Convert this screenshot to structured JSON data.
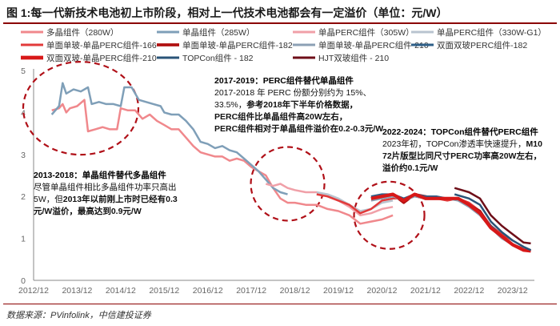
{
  "figure_title": "图 1:每一代新技术电池初上市阶段，相对上一代技术电池都会有一定溢价（单位：元/W）",
  "source": "数据来源：PVinfolink，中信建投证券",
  "chart_data": {
    "type": "line",
    "title": "",
    "xlabel": "",
    "ylabel": "",
    "x_ticks": [
      "2012/12",
      "2013/12",
      "2014/12",
      "2015/12",
      "2016/12",
      "2017/12",
      "2018/12",
      "2019/12",
      "2020/12",
      "2021/12",
      "2022/12",
      "2023/12"
    ],
    "y_ticks": [
      0,
      1,
      2,
      3,
      4,
      5
    ],
    "ylim": [
      0,
      5
    ],
    "xlim": [
      "2012/12",
      "2024/06"
    ],
    "grid": false,
    "legend_position": "top",
    "series": [
      {
        "name": "多晶组件（280W）",
        "color": "#f0888c",
        "width": 2.5,
        "points": [
          [
            "2013-05",
            4.05
          ],
          [
            "2013-07",
            4.1
          ],
          [
            "2013-08",
            4.2
          ],
          [
            "2013-09",
            4.0
          ],
          [
            "2013-10",
            4.1
          ],
          [
            "2013-12",
            4.15
          ],
          [
            "2014-02",
            4.3
          ],
          [
            "2014-03",
            3.55
          ],
          [
            "2014-05",
            3.6
          ],
          [
            "2014-07",
            3.65
          ],
          [
            "2014-09",
            3.6
          ],
          [
            "2014-11",
            3.6
          ],
          [
            "2014-12",
            4.1
          ],
          [
            "2015-02",
            4.05
          ],
          [
            "2015-04",
            4.05
          ],
          [
            "2015-06",
            3.85
          ],
          [
            "2015-08",
            3.95
          ],
          [
            "2015-10",
            3.8
          ],
          [
            "2015-12",
            3.7
          ],
          [
            "2016-02",
            3.6
          ],
          [
            "2016-04",
            3.6
          ],
          [
            "2016-06",
            3.4
          ],
          [
            "2016-08",
            3.2
          ],
          [
            "2016-10",
            3.05
          ],
          [
            "2016-12",
            3.0
          ],
          [
            "2017-02",
            2.95
          ],
          [
            "2017-04",
            2.95
          ],
          [
            "2017-06",
            2.85
          ],
          [
            "2017-08",
            2.9
          ],
          [
            "2017-10",
            2.85
          ],
          [
            "2017-12",
            2.7
          ],
          [
            "2018-02",
            2.6
          ],
          [
            "2018-04",
            2.5
          ],
          [
            "2018-06",
            2.2
          ],
          [
            "2018-08",
            1.95
          ],
          [
            "2018-10",
            1.85
          ],
          [
            "2018-12",
            1.85
          ],
          [
            "2019-03",
            1.8
          ],
          [
            "2019-06",
            1.8
          ],
          [
            "2019-09",
            1.7
          ],
          [
            "2019-12",
            1.65
          ],
          [
            "2020-03",
            1.55
          ],
          [
            "2020-06",
            1.35
          ],
          [
            "2020-09",
            1.4
          ],
          [
            "2020-12",
            1.45
          ],
          [
            "2021-03",
            1.55
          ]
        ]
      },
      {
        "name": "单晶组件（285W）",
        "color": "#7f9fb8",
        "width": 2.5,
        "points": [
          [
            "2013-05",
            3.95
          ],
          [
            "2013-07",
            4.15
          ],
          [
            "2013-08",
            4.7
          ],
          [
            "2013-09",
            4.45
          ],
          [
            "2013-11",
            4.55
          ],
          [
            "2014-01",
            4.5
          ],
          [
            "2014-03",
            4.6
          ],
          [
            "2014-04",
            4.2
          ],
          [
            "2014-06",
            4.25
          ],
          [
            "2014-08",
            4.2
          ],
          [
            "2014-10",
            4.2
          ],
          [
            "2014-12",
            4.15
          ],
          [
            "2015-01",
            4.6
          ],
          [
            "2015-03",
            4.6
          ],
          [
            "2015-05",
            4.3
          ],
          [
            "2015-07",
            4.25
          ],
          [
            "2015-09",
            4.2
          ],
          [
            "2015-11",
            4.15
          ],
          [
            "2015-12",
            4.0
          ],
          [
            "2016-02",
            3.95
          ],
          [
            "2016-04",
            3.95
          ],
          [
            "2016-06",
            3.8
          ],
          [
            "2016-08",
            3.6
          ],
          [
            "2016-10",
            3.3
          ],
          [
            "2016-12",
            3.25
          ],
          [
            "2017-02",
            3.15
          ],
          [
            "2017-04",
            3.2
          ],
          [
            "2017-06",
            3.1
          ],
          [
            "2017-08",
            3.05
          ],
          [
            "2017-10",
            2.9
          ],
          [
            "2017-12",
            2.75
          ],
          [
            "2018-02",
            2.6
          ],
          [
            "2018-04",
            2.4
          ],
          [
            "2018-06",
            2.2
          ],
          [
            "2018-08",
            2.1
          ],
          [
            "2018-10",
            2.05
          ]
        ]
      },
      {
        "name": "单晶PERC组件（305W）",
        "color": "#f0a0a8",
        "width": 2.5,
        "points": [
          [
            "2018-04",
            2.3
          ],
          [
            "2018-06",
            2.25
          ],
          [
            "2018-08",
            2.3
          ],
          [
            "2018-10",
            2.2
          ],
          [
            "2018-12",
            2.15
          ],
          [
            "2019-03",
            2.1
          ],
          [
            "2019-06",
            2.1
          ],
          [
            "2019-09",
            2.0
          ],
          [
            "2019-12",
            1.9
          ],
          [
            "2020-03",
            1.75
          ],
          [
            "2020-06",
            1.55
          ],
          [
            "2020-09",
            1.6
          ],
          [
            "2020-12",
            1.7
          ],
          [
            "2021-03",
            1.75
          ]
        ]
      },
      {
        "name": "单晶PERC组件（330W-G1）",
        "color": "#b9c4cf",
        "width": 2.5,
        "points": [
          [
            "2019-06",
            2.1
          ],
          [
            "2019-09",
            2.05
          ],
          [
            "2019-12",
            1.95
          ],
          [
            "2020-03",
            1.8
          ],
          [
            "2020-06",
            1.65
          ],
          [
            "2020-09",
            1.7
          ],
          [
            "2020-12",
            1.85
          ],
          [
            "2021-03",
            1.9
          ]
        ]
      },
      {
        "name": "单面单玻-单晶PERC组件-166",
        "color": "#e23a3a",
        "width": 2.5,
        "points": [
          [
            "2019-06",
            2.05
          ],
          [
            "2019-09",
            2.0
          ],
          [
            "2019-12",
            1.9
          ],
          [
            "2020-03",
            1.8
          ],
          [
            "2020-06",
            1.6
          ],
          [
            "2020-09",
            1.7
          ],
          [
            "2020-12",
            1.9
          ],
          [
            "2021-03",
            1.95
          ],
          [
            "2021-06",
            1.95
          ],
          [
            "2021-09",
            2.0
          ],
          [
            "2021-12",
            1.95
          ],
          [
            "2022-03",
            1.95
          ],
          [
            "2022-06",
            1.9
          ],
          [
            "2022-09",
            1.95
          ],
          [
            "2022-12",
            1.85
          ],
          [
            "2023-03",
            1.65
          ],
          [
            "2023-06",
            1.3
          ],
          [
            "2023-09",
            1.1
          ],
          [
            "2023-12",
            0.95
          ]
        ]
      },
      {
        "name": "单面单玻-单晶PERC组件-182",
        "color": "#b01010",
        "width": 3.2,
        "points": [
          [
            "2020-09",
            1.95
          ],
          [
            "2020-12",
            2.0
          ],
          [
            "2021-03",
            2.05
          ],
          [
            "2021-06",
            1.85
          ],
          [
            "2021-09",
            2.05
          ],
          [
            "2021-12",
            2.0
          ],
          [
            "2022-03",
            1.95
          ],
          [
            "2022-06",
            1.95
          ],
          [
            "2022-09",
            1.95
          ],
          [
            "2022-12",
            1.8
          ],
          [
            "2023-03",
            1.65
          ],
          [
            "2023-06",
            1.25
          ],
          [
            "2023-09",
            1.05
          ],
          [
            "2023-12",
            0.85
          ],
          [
            "2024-03",
            0.75
          ],
          [
            "2024-05",
            0.7
          ]
        ]
      },
      {
        "name": "单面单玻-单晶PERC组件-210",
        "color": "#8ca0b4",
        "width": 2.5,
        "points": [
          [
            "2020-09",
            1.9
          ],
          [
            "2020-12",
            1.95
          ],
          [
            "2021-03",
            2.0
          ],
          [
            "2021-06",
            1.9
          ],
          [
            "2021-09",
            2.0
          ],
          [
            "2021-12",
            1.95
          ],
          [
            "2022-03",
            1.95
          ],
          [
            "2022-06",
            1.95
          ],
          [
            "2022-09",
            1.9
          ],
          [
            "2022-12",
            1.75
          ],
          [
            "2023-03",
            1.55
          ],
          [
            "2023-06",
            1.25
          ],
          [
            "2023-09",
            1.0
          ],
          [
            "2023-12",
            0.85
          ],
          [
            "2024-03",
            0.75
          ],
          [
            "2024-05",
            0.7
          ]
        ]
      },
      {
        "name": "双面双玻PERC组件-182",
        "color": "#2e5f88",
        "width": 2.5,
        "points": [
          [
            "2020-09",
            2.0
          ],
          [
            "2020-12",
            2.05
          ],
          [
            "2021-03",
            2.05
          ],
          [
            "2021-06",
            1.95
          ],
          [
            "2021-09",
            2.05
          ],
          [
            "2021-12",
            2.0
          ],
          [
            "2022-03",
            2.0
          ],
          [
            "2022-06",
            1.95
          ],
          [
            "2022-09",
            1.95
          ],
          [
            "2022-12",
            1.8
          ],
          [
            "2023-03",
            1.6
          ],
          [
            "2023-06",
            1.3
          ],
          [
            "2023-09",
            1.05
          ],
          [
            "2023-12",
            0.85
          ],
          [
            "2024-03",
            0.72
          ],
          [
            "2024-05",
            0.7
          ]
        ]
      },
      {
        "name": "双面双玻-单晶PERC组件-210",
        "color": "#d81818",
        "width": 4.2,
        "points": [
          [
            "2020-09",
            1.95
          ],
          [
            "2020-12",
            2.0
          ],
          [
            "2021-03",
            2.05
          ],
          [
            "2021-06",
            1.9
          ],
          [
            "2021-09",
            2.05
          ],
          [
            "2021-12",
            1.95
          ],
          [
            "2022-03",
            1.95
          ],
          [
            "2022-06",
            1.95
          ],
          [
            "2022-09",
            1.95
          ],
          [
            "2022-12",
            1.8
          ],
          [
            "2023-03",
            1.6
          ],
          [
            "2023-06",
            1.25
          ],
          [
            "2023-09",
            1.05
          ],
          [
            "2023-12",
            0.85
          ],
          [
            "2024-03",
            0.72
          ],
          [
            "2024-05",
            0.7
          ]
        ]
      },
      {
        "name": "TOPCon组件 - 182",
        "color": "#2a5478",
        "width": 2.5,
        "points": [
          [
            "2022-08",
            2.05
          ],
          [
            "2022-10",
            2.0
          ],
          [
            "2022-12",
            1.95
          ],
          [
            "2023-03",
            1.8
          ],
          [
            "2023-06",
            1.4
          ],
          [
            "2023-09",
            1.15
          ],
          [
            "2023-12",
            0.95
          ],
          [
            "2024-03",
            0.8
          ],
          [
            "2024-05",
            0.72
          ]
        ]
      },
      {
        "name": "HJT双玻组件 - 210",
        "color": "#6e0e18",
        "width": 2.5,
        "points": [
          [
            "2022-08",
            2.2
          ],
          [
            "2022-10",
            2.15
          ],
          [
            "2022-12",
            2.1
          ],
          [
            "2023-03",
            1.95
          ],
          [
            "2023-06",
            1.55
          ],
          [
            "2023-09",
            1.3
          ],
          [
            "2023-12",
            1.1
          ],
          [
            "2024-03",
            0.9
          ],
          [
            "2024-05",
            0.88
          ]
        ]
      }
    ]
  },
  "annotations": [
    {
      "key": "a2013",
      "title": "2013-2018：单晶组件替代多晶组件",
      "lines": [
        [
          {
            "t": "尽管单晶组件相比多晶组件功率只高出"
          }
        ],
        [
          {
            "t": "5W，但"
          },
          {
            "t": "2013年以前刚上市时已经有0.3",
            "b": true
          }
        ],
        [
          {
            "t": "元/W溢价，最高达到0.9元/W",
            "b": true
          }
        ]
      ]
    },
    {
      "key": "a2017",
      "title": "2017-2019：PERC组件替代单晶组件",
      "lines": [
        [
          {
            "t": "2017-2018 年 PERC 份额分别约为 15%、"
          }
        ],
        [
          {
            "t": "33.5%，"
          },
          {
            "t": "参考2018年下半年价格数据，",
            "b": true
          }
        ],
        [
          {
            "t": "PERC组件比单晶组件高20W左右，",
            "b": true
          }
        ],
        [
          {
            "t": "PERC组件相对于单晶组件溢价在0.2-0.3元/W",
            "b": true
          }
        ]
      ]
    },
    {
      "key": "a2022",
      "title": "2022-2024：TOPCon组件替代PERC组件",
      "lines": [
        [
          {
            "t": "2023年初，TOPCon渗透率快速提升，"
          },
          {
            "t": "M10",
            "b": true
          }
        ],
        [
          {
            "t": "72片版型比同尺寸PERC功率高20W左右，",
            "b": true
          }
        ],
        [
          {
            "t": "溢价约0.1元/W",
            "b": true
          }
        ]
      ]
    }
  ]
}
